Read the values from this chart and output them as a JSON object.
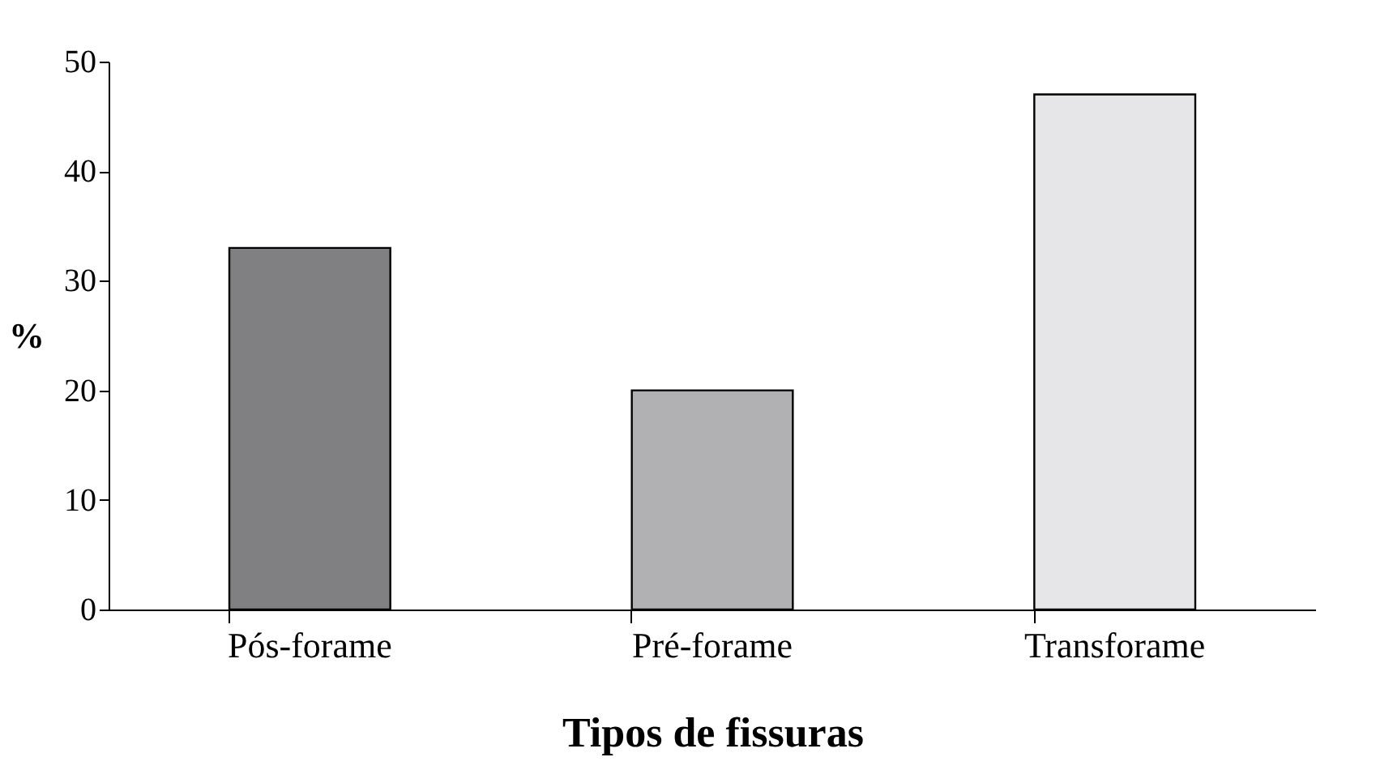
{
  "chart_data": {
    "type": "bar",
    "xlabel": "Tipos de fissuras",
    "ylabel": "%",
    "categories": [
      "Pós-forame",
      "Pré-forame",
      "Transforame"
    ],
    "values": [
      33,
      20,
      47
    ],
    "colors": [
      "#808083",
      "#b1b1b4",
      "#e6e6e8"
    ],
    "ylim": [
      0,
      50
    ],
    "yticks": [
      0,
      10,
      20,
      30,
      40,
      50
    ],
    "grid": false
  }
}
